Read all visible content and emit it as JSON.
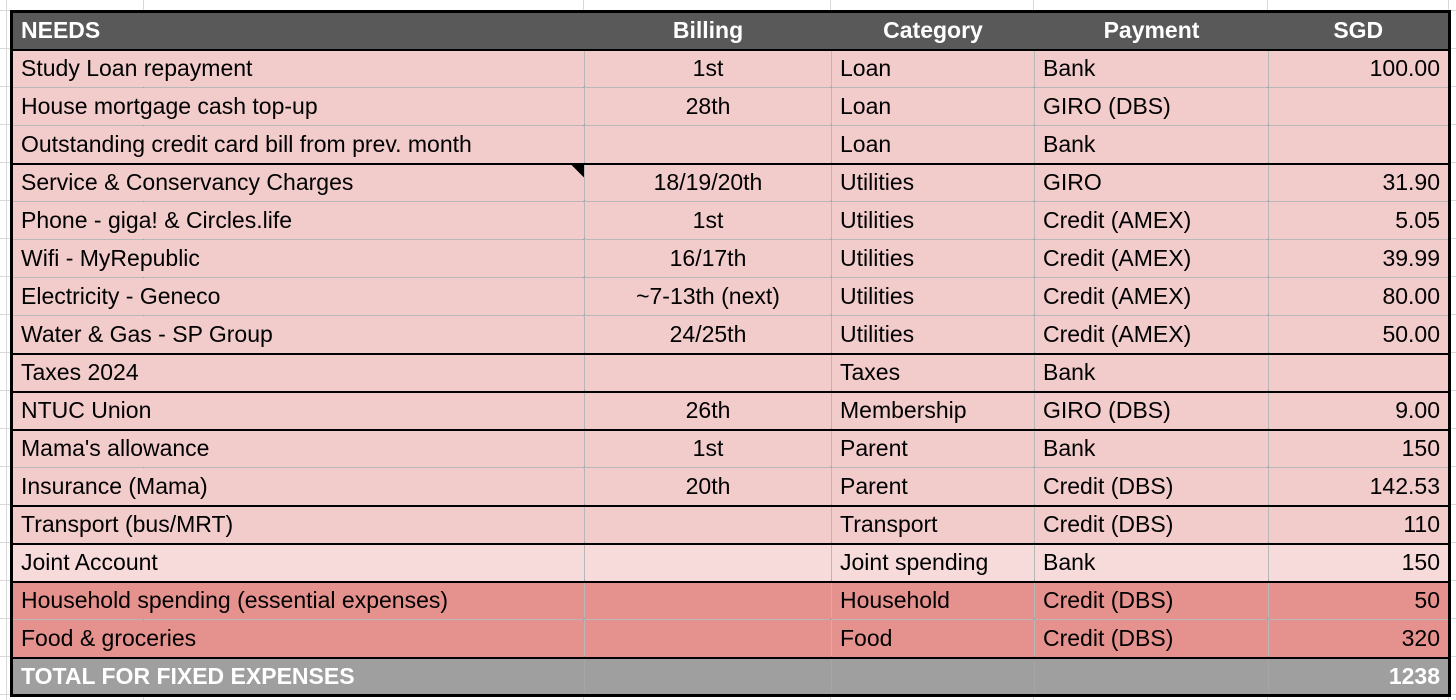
{
  "table": {
    "columns": [
      {
        "key": "needs",
        "label": "NEEDS"
      },
      {
        "key": "billing",
        "label": "Billing"
      },
      {
        "key": "category",
        "label": "Category"
      },
      {
        "key": "payment",
        "label": "Payment"
      },
      {
        "key": "sgd",
        "label": "SGD"
      }
    ],
    "rows": [
      {
        "needs": "Study Loan repayment",
        "billing": "1st",
        "category": "Loan",
        "payment": "Bank",
        "sgd": "100.00",
        "style": "pink",
        "group_end": false,
        "note": false
      },
      {
        "needs": "House mortgage cash top-up",
        "billing": "28th",
        "category": "Loan",
        "payment": "GIRO (DBS)",
        "sgd": "",
        "style": "pink",
        "group_end": false,
        "note": false
      },
      {
        "needs": "Outstanding credit card bill from prev. month",
        "billing": "",
        "category": "Loan",
        "payment": "Bank",
        "sgd": "",
        "style": "pink",
        "group_end": true,
        "note": false
      },
      {
        "needs": "Service & Conservancy Charges",
        "billing": "18/19/20th",
        "category": "Utilities",
        "payment": "GIRO",
        "sgd": "31.90",
        "style": "pink",
        "group_end": false,
        "note": true
      },
      {
        "needs": "Phone - giga! & Circles.life",
        "billing": "1st",
        "category": "Utilities",
        "payment": "Credit (AMEX)",
        "sgd": "5.05",
        "style": "pink",
        "group_end": false,
        "note": false
      },
      {
        "needs": "Wifi - MyRepublic",
        "billing": "16/17th",
        "category": "Utilities",
        "payment": "Credit (AMEX)",
        "sgd": "39.99",
        "style": "pink",
        "group_end": false,
        "note": false
      },
      {
        "needs": "Electricity - Geneco",
        "billing": "~7-13th (next)",
        "category": "Utilities",
        "payment": "Credit (AMEX)",
        "sgd": "80.00",
        "style": "pink",
        "group_end": false,
        "note": false
      },
      {
        "needs": "Water & Gas - SP Group",
        "billing": "24/25th",
        "category": "Utilities",
        "payment": "Credit (AMEX)",
        "sgd": "50.00",
        "style": "pink",
        "group_end": true,
        "note": false
      },
      {
        "needs": "Taxes 2024",
        "billing": "",
        "category": "Taxes",
        "payment": "Bank",
        "sgd": "",
        "style": "pink",
        "group_end": true,
        "note": false
      },
      {
        "needs": "NTUC Union",
        "billing": "26th",
        "category": "Membership",
        "payment": "GIRO (DBS)",
        "sgd": "9.00",
        "style": "pink",
        "group_end": true,
        "note": false
      },
      {
        "needs": "Mama's allowance",
        "billing": "1st",
        "category": "Parent",
        "payment": "Bank",
        "sgd": "150",
        "style": "pink",
        "group_end": false,
        "note": false
      },
      {
        "needs": "Insurance (Mama)",
        "billing": "20th",
        "category": "Parent",
        "payment": "Credit (DBS)",
        "sgd": "142.53",
        "style": "pink",
        "group_end": true,
        "note": false
      },
      {
        "needs": "Transport (bus/MRT)",
        "billing": "",
        "category": "Transport",
        "payment": "Credit (DBS)",
        "sgd": "110",
        "style": "pink",
        "group_end": true,
        "note": false
      },
      {
        "needs": "Joint Account",
        "billing": "",
        "category": "Joint spending",
        "payment": "Bank",
        "sgd": "150",
        "style": "joint",
        "group_end": true,
        "note": false
      },
      {
        "needs": "Household spending (essential expenses)",
        "billing": "",
        "category": "Household",
        "payment": "Credit (DBS)",
        "sgd": "50",
        "style": "salmon",
        "group_end": false,
        "note": false
      },
      {
        "needs": "Food & groceries",
        "billing": "",
        "category": "Food",
        "payment": "Credit (DBS)",
        "sgd": "320",
        "style": "salmon",
        "group_end": true,
        "note": false
      }
    ],
    "total_row": {
      "label": "TOTAL FOR FIXED EXPENSES",
      "billing": "",
      "category": "",
      "payment": "",
      "sgd": "1238"
    }
  },
  "colors": {
    "header_bg": "#595959",
    "header_text": "#ffffff",
    "row_pink": "#f2cbcb",
    "row_joint_light": "#f6dbda",
    "row_salmon": "#e5928e",
    "total_bg": "#9f9f9f",
    "total_text": "#ffffff",
    "border_black": "#000000",
    "gridline": "#d9d9d9"
  },
  "icons": {
    "note_indicator": "black corner triangle (cell note marker)"
  }
}
